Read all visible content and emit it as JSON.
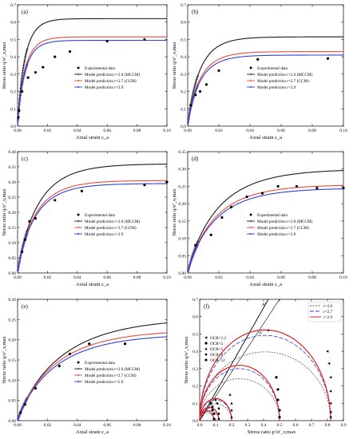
{
  "chart_data": [
    {
      "panel": "(a)",
      "type": "line",
      "xlabel": "Axial strain ε_a",
      "ylabel": "Stress ratio q/σ'_v,max",
      "xlim": [
        0,
        0.1
      ],
      "ylim": [
        0,
        0.7
      ],
      "xticks": [
        "0.00",
        "0.02",
        "0.04",
        "0.06",
        "0.08",
        "0.10"
      ],
      "yticks": [
        "0.0",
        "0.1",
        "0.2",
        "0.3",
        "0.4",
        "0.5",
        "0.6",
        "0.7"
      ],
      "legend_position": "bottom-right",
      "experimental": {
        "name": "Experimental data",
        "x": [
          0.0005,
          0.001,
          0.003,
          0.007,
          0.012,
          0.017,
          0.025,
          0.035,
          0.06,
          0.085
        ],
        "y": [
          0.05,
          0.09,
          0.2,
          0.28,
          0.31,
          0.34,
          0.4,
          0.43,
          0.49,
          0.5
        ]
      },
      "series": [
        {
          "name": "Model prediction r=2.0 (MCCM)",
          "color": "#1a1a1a",
          "marker": "+",
          "asymptote": 0.62,
          "k": 0.005
        },
        {
          "name": "Model prediction r=2.7 (CCM)",
          "color": "#e8473c",
          "marker": "x",
          "asymptote": 0.515,
          "k": 0.005
        },
        {
          "name": "Model prediction r=2.9",
          "color": "#2f3fd8",
          "marker": "*",
          "asymptote": 0.495,
          "k": 0.005
        }
      ]
    },
    {
      "panel": "(b)",
      "type": "line",
      "xlabel": "Axial strain ε_a",
      "ylabel": "Stress ratio q/σ'_v,max",
      "xlim": [
        0,
        0.1
      ],
      "ylim": [
        0,
        0.7
      ],
      "xticks": [
        "0.00",
        "0.02",
        "0.04",
        "0.06",
        "0.08",
        "0.10"
      ],
      "yticks": [
        "0.0",
        "0.1",
        "0.2",
        "0.3",
        "0.4",
        "0.5",
        "0.6",
        "0.7"
      ],
      "legend_position": "bottom-right",
      "experimental": {
        "name": "Experimental data",
        "x": [
          0.002,
          0.005,
          0.008,
          0.012,
          0.02,
          0.045,
          0.09
        ],
        "y": [
          0.12,
          0.18,
          0.2,
          0.24,
          0.32,
          0.385,
          0.39
        ]
      },
      "series": [
        {
          "name": "Model prediction r=2.0 (MCCM)",
          "color": "#1a1a1a",
          "marker": "+",
          "asymptote": 0.515,
          "k": 0.008
        },
        {
          "name": "Model prediction r=2.7 (CCM)",
          "color": "#e8473c",
          "marker": "x",
          "asymptote": 0.43,
          "k": 0.008
        },
        {
          "name": "Model prediction r=2.9",
          "color": "#2f3fd8",
          "marker": "*",
          "asymptote": 0.41,
          "k": 0.008
        }
      ]
    },
    {
      "panel": "(c)",
      "type": "line",
      "xlabel": "Axial strain ε_a",
      "ylabel": "Stress ratio q/σ'_v,max",
      "xlim": [
        0,
        0.1
      ],
      "ylim": [
        0,
        0.4
      ],
      "xticks": [
        "0.00",
        "0.02",
        "0.04",
        "0.06",
        "0.08",
        "0.10"
      ],
      "yticks": [
        "0.00",
        "0.05",
        "0.10",
        "0.15",
        "0.20",
        "0.25",
        "0.30",
        "0.35",
        "0.40"
      ],
      "legend_position": "bottom-right",
      "experimental": {
        "name": "Experimental data",
        "x": [
          0.003,
          0.005,
          0.008,
          0.012,
          0.025,
          0.043,
          0.085,
          0.1
        ],
        "y": [
          0.07,
          0.11,
          0.17,
          0.18,
          0.24,
          0.27,
          0.29,
          0.3
        ]
      },
      "series": [
        {
          "name": "Model prediction r=2.0 (MCCM)",
          "color": "#1a1a1a",
          "marker": "+",
          "asymptote": 0.36,
          "k": 0.014
        },
        {
          "name": "Model prediction r=2.7 (CCM)",
          "color": "#e8473c",
          "marker": "x",
          "asymptote": 0.305,
          "k": 0.012
        },
        {
          "name": "Model prediction r=2.9",
          "color": "#2f3fd8",
          "marker": "*",
          "asymptote": 0.295,
          "k": 0.012
        }
      ]
    },
    {
      "panel": "(d)",
      "type": "line",
      "xlabel": "Axial strain ε_a",
      "ylabel": "Stress ratio q/σ'_v,max",
      "xlim": [
        0,
        0.1
      ],
      "ylim": [
        0,
        0.35
      ],
      "xticks": [
        "0.00",
        "0.02",
        "0.04",
        "0.06",
        "0.08",
        "0.10"
      ],
      "yticks": [
        "0.00",
        "0.05",
        "0.10",
        "0.15",
        "0.20",
        "0.25",
        "0.30",
        "0.35"
      ],
      "legend_position": "bottom-right",
      "experimental": {
        "name": "Experimental data",
        "x": [
          0.005,
          0.015,
          0.022,
          0.028,
          0.038,
          0.048,
          0.058,
          0.07,
          0.083,
          0.1
        ],
        "y": [
          0.08,
          0.11,
          0.16,
          0.19,
          0.22,
          0.23,
          0.25,
          0.25,
          0.245,
          0.245
        ]
      },
      "series": [
        {
          "name": "Model prediction r=2.0 (MCCM)",
          "color": "#1a1a1a",
          "marker": "+",
          "asymptote": 0.3,
          "k": 0.02
        },
        {
          "name": "Model prediction r=2.7 (CCM)",
          "color": "#e8473c",
          "marker": "x",
          "asymptote": 0.255,
          "k": 0.018
        },
        {
          "name": "Model prediction r=2.9",
          "color": "#2f3fd8",
          "marker": "*",
          "asymptote": 0.245,
          "k": 0.018
        }
      ]
    },
    {
      "panel": "(e)",
      "type": "line",
      "xlabel": "Axial strain ε_a",
      "ylabel": "Stress ratio q/σ'_v,max",
      "xlim": [
        0,
        0.1
      ],
      "ylim": [
        0,
        0.3
      ],
      "xticks": [
        "0.00",
        "0.02",
        "0.04",
        "0.06",
        "0.08",
        "0.10"
      ],
      "yticks": [
        "0.00",
        "0.05",
        "0.10",
        "0.15",
        "0.20",
        "0.25",
        "0.30"
      ],
      "legend_position": "bottom-right",
      "experimental": {
        "name": "Experimental data",
        "x": [
          0.002,
          0.005,
          0.012,
          0.028,
          0.035,
          0.048,
          0.072
        ],
        "y": [
          0.02,
          0.04,
          0.08,
          0.135,
          0.165,
          0.19,
          0.19
        ]
      },
      "series": [
        {
          "name": "Model prediction r=2.0 (MCCM)",
          "color": "#1a1a1a",
          "marker": "+",
          "asymptote": 0.255,
          "k": 0.03
        },
        {
          "name": "Model prediction r=2.7 (CCM)",
          "color": "#e8473c",
          "marker": "x",
          "asymptote": 0.225,
          "k": 0.026
        },
        {
          "name": "Model prediction r=2.9",
          "color": "#2f3fd8",
          "marker": "*",
          "asymptote": 0.215,
          "k": 0.026
        }
      ]
    },
    {
      "panel": "(f)",
      "type": "scatter",
      "xlabel": "Stress ratio p'/σ'_v,max",
      "ylabel": "Stress ratio q/σ'_v,max",
      "xlim": [
        0,
        0.9
      ],
      "ylim": [
        0,
        0.7
      ],
      "xticks": [
        "0.0",
        "0.1",
        "0.2",
        "0.3",
        "0.4",
        "0.5",
        "0.6",
        "0.7",
        "0.8",
        "0.9"
      ],
      "yticks": [
        "0.0",
        "0.1",
        "0.2",
        "0.3",
        "0.4",
        "0.5",
        "0.6",
        "0.7"
      ],
      "annotations": [
        "A''",
        "A'"
      ],
      "legend_left": [
        "OCR=1.2",
        "OCR=2",
        "OCR=5",
        "OCR=8",
        "OCR=12"
      ],
      "legend_right": [
        {
          "name": "r=2.0",
          "color": "#555555",
          "dash": "2,1.5"
        },
        {
          "name": "r=2.7",
          "color": "#2f3fd8",
          "dash": "5,2"
        },
        {
          "name": "r=2.9",
          "color": "#e02020",
          "dash": ""
        }
      ],
      "data_points": {
        "ocr_1_2": {
          "x": [
            0.8,
            0.81,
            0.82,
            0.82,
            0.82,
            0.82,
            0.82
          ],
          "y": [
            0.4,
            0.33,
            0.25,
            0.17,
            0.1,
            0.05,
            0.02
          ]
        },
        "ocr_2": {
          "x": [
            0.48,
            0.49,
            0.49,
            0.5,
            0.5
          ],
          "y": [
            0.25,
            0.18,
            0.12,
            0.06,
            0.02
          ]
        },
        "ocr_5": {
          "x": [
            0.19,
            0.2,
            0.2,
            0.2
          ],
          "y": [
            0.15,
            0.1,
            0.06,
            0.02
          ]
        },
        "ocr_8": {
          "x": [
            0.1,
            0.11,
            0.12,
            0.12,
            0.12
          ],
          "y": [
            0.12,
            0.1,
            0.07,
            0.04,
            0.01
          ]
        },
        "ocr_12": {
          "x": [
            0.07,
            0.08,
            0.08,
            0.09,
            0.09
          ],
          "y": [
            0.1,
            0.08,
            0.06,
            0.04,
            0.01
          ]
        }
      }
    }
  ]
}
